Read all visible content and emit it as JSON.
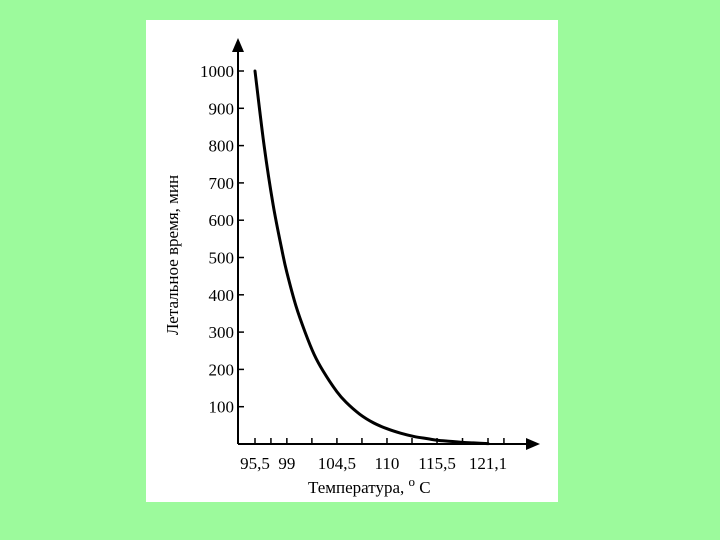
{
  "colors": {
    "background": "#9cfa9c",
    "card": "#ffffff",
    "ink": "#000000"
  },
  "chart_data": {
    "type": "line",
    "xlabel": "Температура,",
    "xlabel_unit_sup": "o",
    "xlabel_unit": "C",
    "ylabel": "Летальное время, мин",
    "x_ticks": [
      "95,5",
      "99",
      "104,5",
      "110",
      "115,5",
      "121,1"
    ],
    "y_ticks": [
      "100",
      "200",
      "300",
      "400",
      "500",
      "600",
      "700",
      "800",
      "900",
      "1000"
    ],
    "ylim": [
      0,
      1000
    ],
    "grid": false,
    "legend": "none",
    "series": [
      {
        "x": [
          95.5,
          96.5,
          97.5,
          98.5,
          99,
          100,
          101,
          102,
          103,
          104.5,
          105.5,
          107,
          108.5,
          110,
          111.5,
          113,
          114.5,
          115.5,
          117,
          118.5,
          119.5,
          121.1
        ],
        "y": [
          1000,
          800,
          640,
          515,
          460,
          370,
          300,
          240,
          195,
          140,
          112,
          80,
          57,
          41,
          29,
          20,
          14,
          10,
          7,
          4,
          3,
          1
        ]
      }
    ]
  }
}
